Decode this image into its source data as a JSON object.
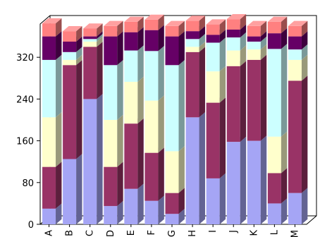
{
  "chart_data": {
    "type": "bar",
    "stacked": true,
    "three_d": true,
    "categories": [
      "A",
      "B",
      "C",
      "D",
      "E",
      "F",
      "G",
      "H",
      "I",
      "J",
      "K",
      "L",
      "M"
    ],
    "ylim": [
      0,
      400
    ],
    "yticks": [
      0,
      80,
      160,
      240,
      320
    ],
    "grid": false,
    "legend": "none",
    "series": [
      {
        "color": "#a5a5f5",
        "values": [
          30,
          125,
          240,
          35,
          68,
          45,
          20,
          205,
          88,
          158,
          160,
          40,
          60
        ]
      },
      {
        "color": "#993366",
        "values": [
          80,
          180,
          100,
          75,
          125,
          92,
          40,
          125,
          145,
          145,
          155,
          58,
          215
        ]
      },
      {
        "color": "#ffffcc",
        "values": [
          95,
          10,
          10,
          90,
          80,
          100,
          80,
          10,
          60,
          30,
          20,
          70,
          40
        ]
      },
      {
        "color": "#ccffff",
        "values": [
          110,
          15,
          5,
          105,
          60,
          95,
          165,
          15,
          55,
          25,
          15,
          168,
          20
        ]
      },
      {
        "color": "#660066",
        "values": [
          45,
          20,
          5,
          55,
          35,
          40,
          55,
          15,
          15,
          15,
          10,
          30,
          25
        ]
      },
      {
        "color": "#ff8080",
        "values": [
          25,
          20,
          15,
          20,
          20,
          20,
          20,
          20,
          20,
          20,
          20,
          22,
          20
        ]
      }
    ]
  }
}
